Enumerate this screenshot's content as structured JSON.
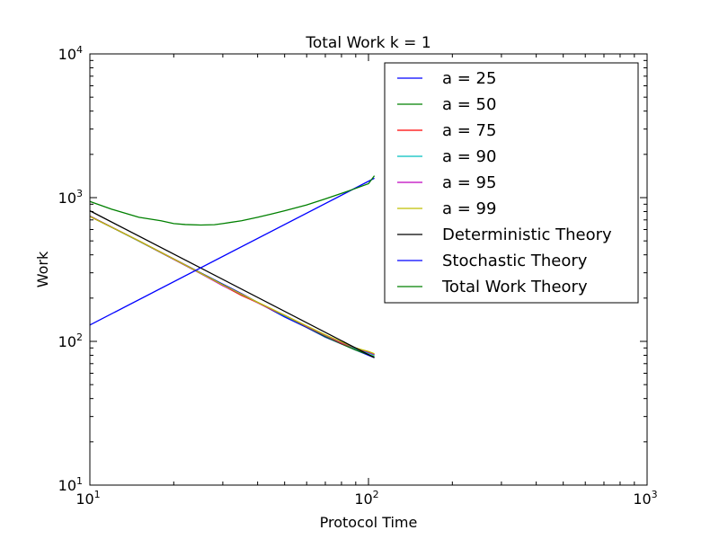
{
  "chart_data": {
    "type": "line",
    "title": "Total Work k = 1",
    "xlabel": "Protocol Time",
    "ylabel": "Work",
    "xscale": "log",
    "yscale": "log",
    "xlim": [
      10,
      1000
    ],
    "ylim": [
      10,
      10000
    ],
    "xticks": [
      {
        "base": "10",
        "exp": "1"
      },
      {
        "base": "10",
        "exp": "2"
      },
      {
        "base": "10",
        "exp": "3"
      }
    ],
    "yticks": [
      {
        "base": "10",
        "exp": "1"
      },
      {
        "base": "10",
        "exp": "2"
      },
      {
        "base": "10",
        "exp": "3"
      },
      {
        "base": "10",
        "exp": "4"
      }
    ],
    "legend_position": "upper right",
    "grid": false,
    "series": [
      {
        "name": "a = 25",
        "color": "#0000ff",
        "x": [
          10,
          15,
          20,
          25,
          30,
          35,
          40,
          45,
          50,
          60,
          70,
          80,
          90,
          100,
          105
        ],
        "y": [
          740,
          500,
          375,
          300,
          250,
          215,
          187,
          165,
          148,
          125,
          107,
          96,
          87,
          80,
          77
        ]
      },
      {
        "name": "a = 50",
        "color": "#008000",
        "x": [
          10,
          15,
          20,
          25,
          30,
          35,
          40,
          45,
          50,
          60,
          70,
          80,
          90,
          100,
          105
        ],
        "y": [
          745,
          498,
          372,
          298,
          248,
          212,
          186,
          166,
          151,
          126,
          108,
          96,
          87,
          81,
          78
        ]
      },
      {
        "name": "a = 75",
        "color": "#ff0000",
        "x": [
          10,
          15,
          20,
          25,
          30,
          35,
          40,
          45,
          50,
          60,
          70,
          80,
          90,
          100,
          105
        ],
        "y": [
          742,
          500,
          374,
          297,
          245,
          209,
          186,
          166,
          152,
          127,
          110,
          97,
          89,
          83,
          81
        ]
      },
      {
        "name": "a = 90",
        "color": "#00bfbf",
        "x": [
          10,
          15,
          20,
          25,
          30,
          35,
          40,
          45,
          50,
          60,
          70,
          80,
          90,
          100,
          105
        ],
        "y": [
          743,
          499,
          373,
          296,
          246,
          212,
          187,
          167,
          151,
          127,
          110,
          98,
          89,
          83,
          80
        ]
      },
      {
        "name": "a = 95",
        "color": "#bf00bf",
        "x": [
          10,
          15,
          20,
          25,
          30,
          35,
          40,
          45,
          50,
          60,
          70,
          80,
          90,
          100,
          105
        ],
        "y": [
          744,
          500,
          372,
          296,
          244,
          213,
          186,
          167,
          152,
          127,
          110,
          98,
          90,
          84,
          81
        ]
      },
      {
        "name": "a = 99",
        "color": "#bfbf00",
        "x": [
          10,
          15,
          20,
          25,
          30,
          35,
          40,
          45,
          50,
          60,
          70,
          80,
          90,
          100,
          105
        ],
        "y": [
          740,
          501,
          374,
          298,
          247,
          213,
          187,
          168,
          152,
          128,
          111,
          99,
          90,
          85,
          82
        ]
      },
      {
        "name": "Deterministic Theory",
        "color": "#000000",
        "x": [
          10,
          105
        ],
        "y": [
          810,
          77
        ]
      },
      {
        "name": "Stochastic Theory",
        "color": "#0000ff",
        "x": [
          10,
          105
        ],
        "y": [
          130,
          1365
        ]
      },
      {
        "name": "Total Work Theory",
        "color": "#008000",
        "x": [
          10,
          12,
          15,
          18,
          20,
          22,
          25,
          28,
          30,
          35,
          40,
          45,
          50,
          60,
          70,
          80,
          90,
          100,
          105
        ],
        "y": [
          940,
          830,
          730,
          690,
          660,
          650,
          645,
          648,
          660,
          690,
          730,
          770,
          810,
          890,
          980,
          1070,
          1160,
          1250,
          1420
        ]
      }
    ]
  }
}
